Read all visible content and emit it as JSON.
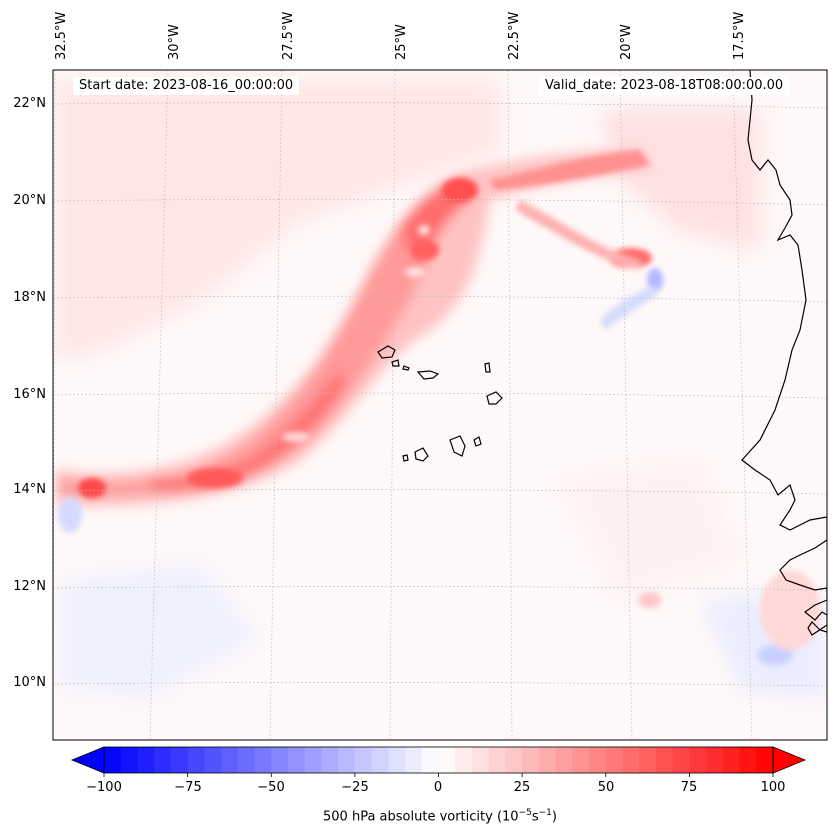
{
  "header": {
    "start_date": "Start date: 2023-08-16_00:00:00",
    "valid_date": "Valid_date: 2023-08-18T08:00:00.00"
  },
  "longitude_labels": [
    "32.5°W",
    "30°W",
    "27.5°W",
    "25°W",
    "22.5°W",
    "20°W",
    "17.5°W"
  ],
  "latitude_labels": [
    "22°N",
    "20°N",
    "18°N",
    "16°N",
    "14°N",
    "12°N",
    "10°N"
  ],
  "colorbar": {
    "ticks": [
      "−100",
      "−75",
      "−50",
      "−25",
      "0",
      "25",
      "50",
      "75",
      "100"
    ],
    "label_prefix": "500 hPa absolute vorticity (10",
    "label_exp1": "−5",
    "label_mid": "s",
    "label_exp2": "−1",
    "label_suffix": ")",
    "min": -100,
    "max": 100
  },
  "colors": {
    "positive": "#ff0000",
    "negative": "#0000ff",
    "coastline": "#000000",
    "grid": "#bbbbbb"
  }
}
